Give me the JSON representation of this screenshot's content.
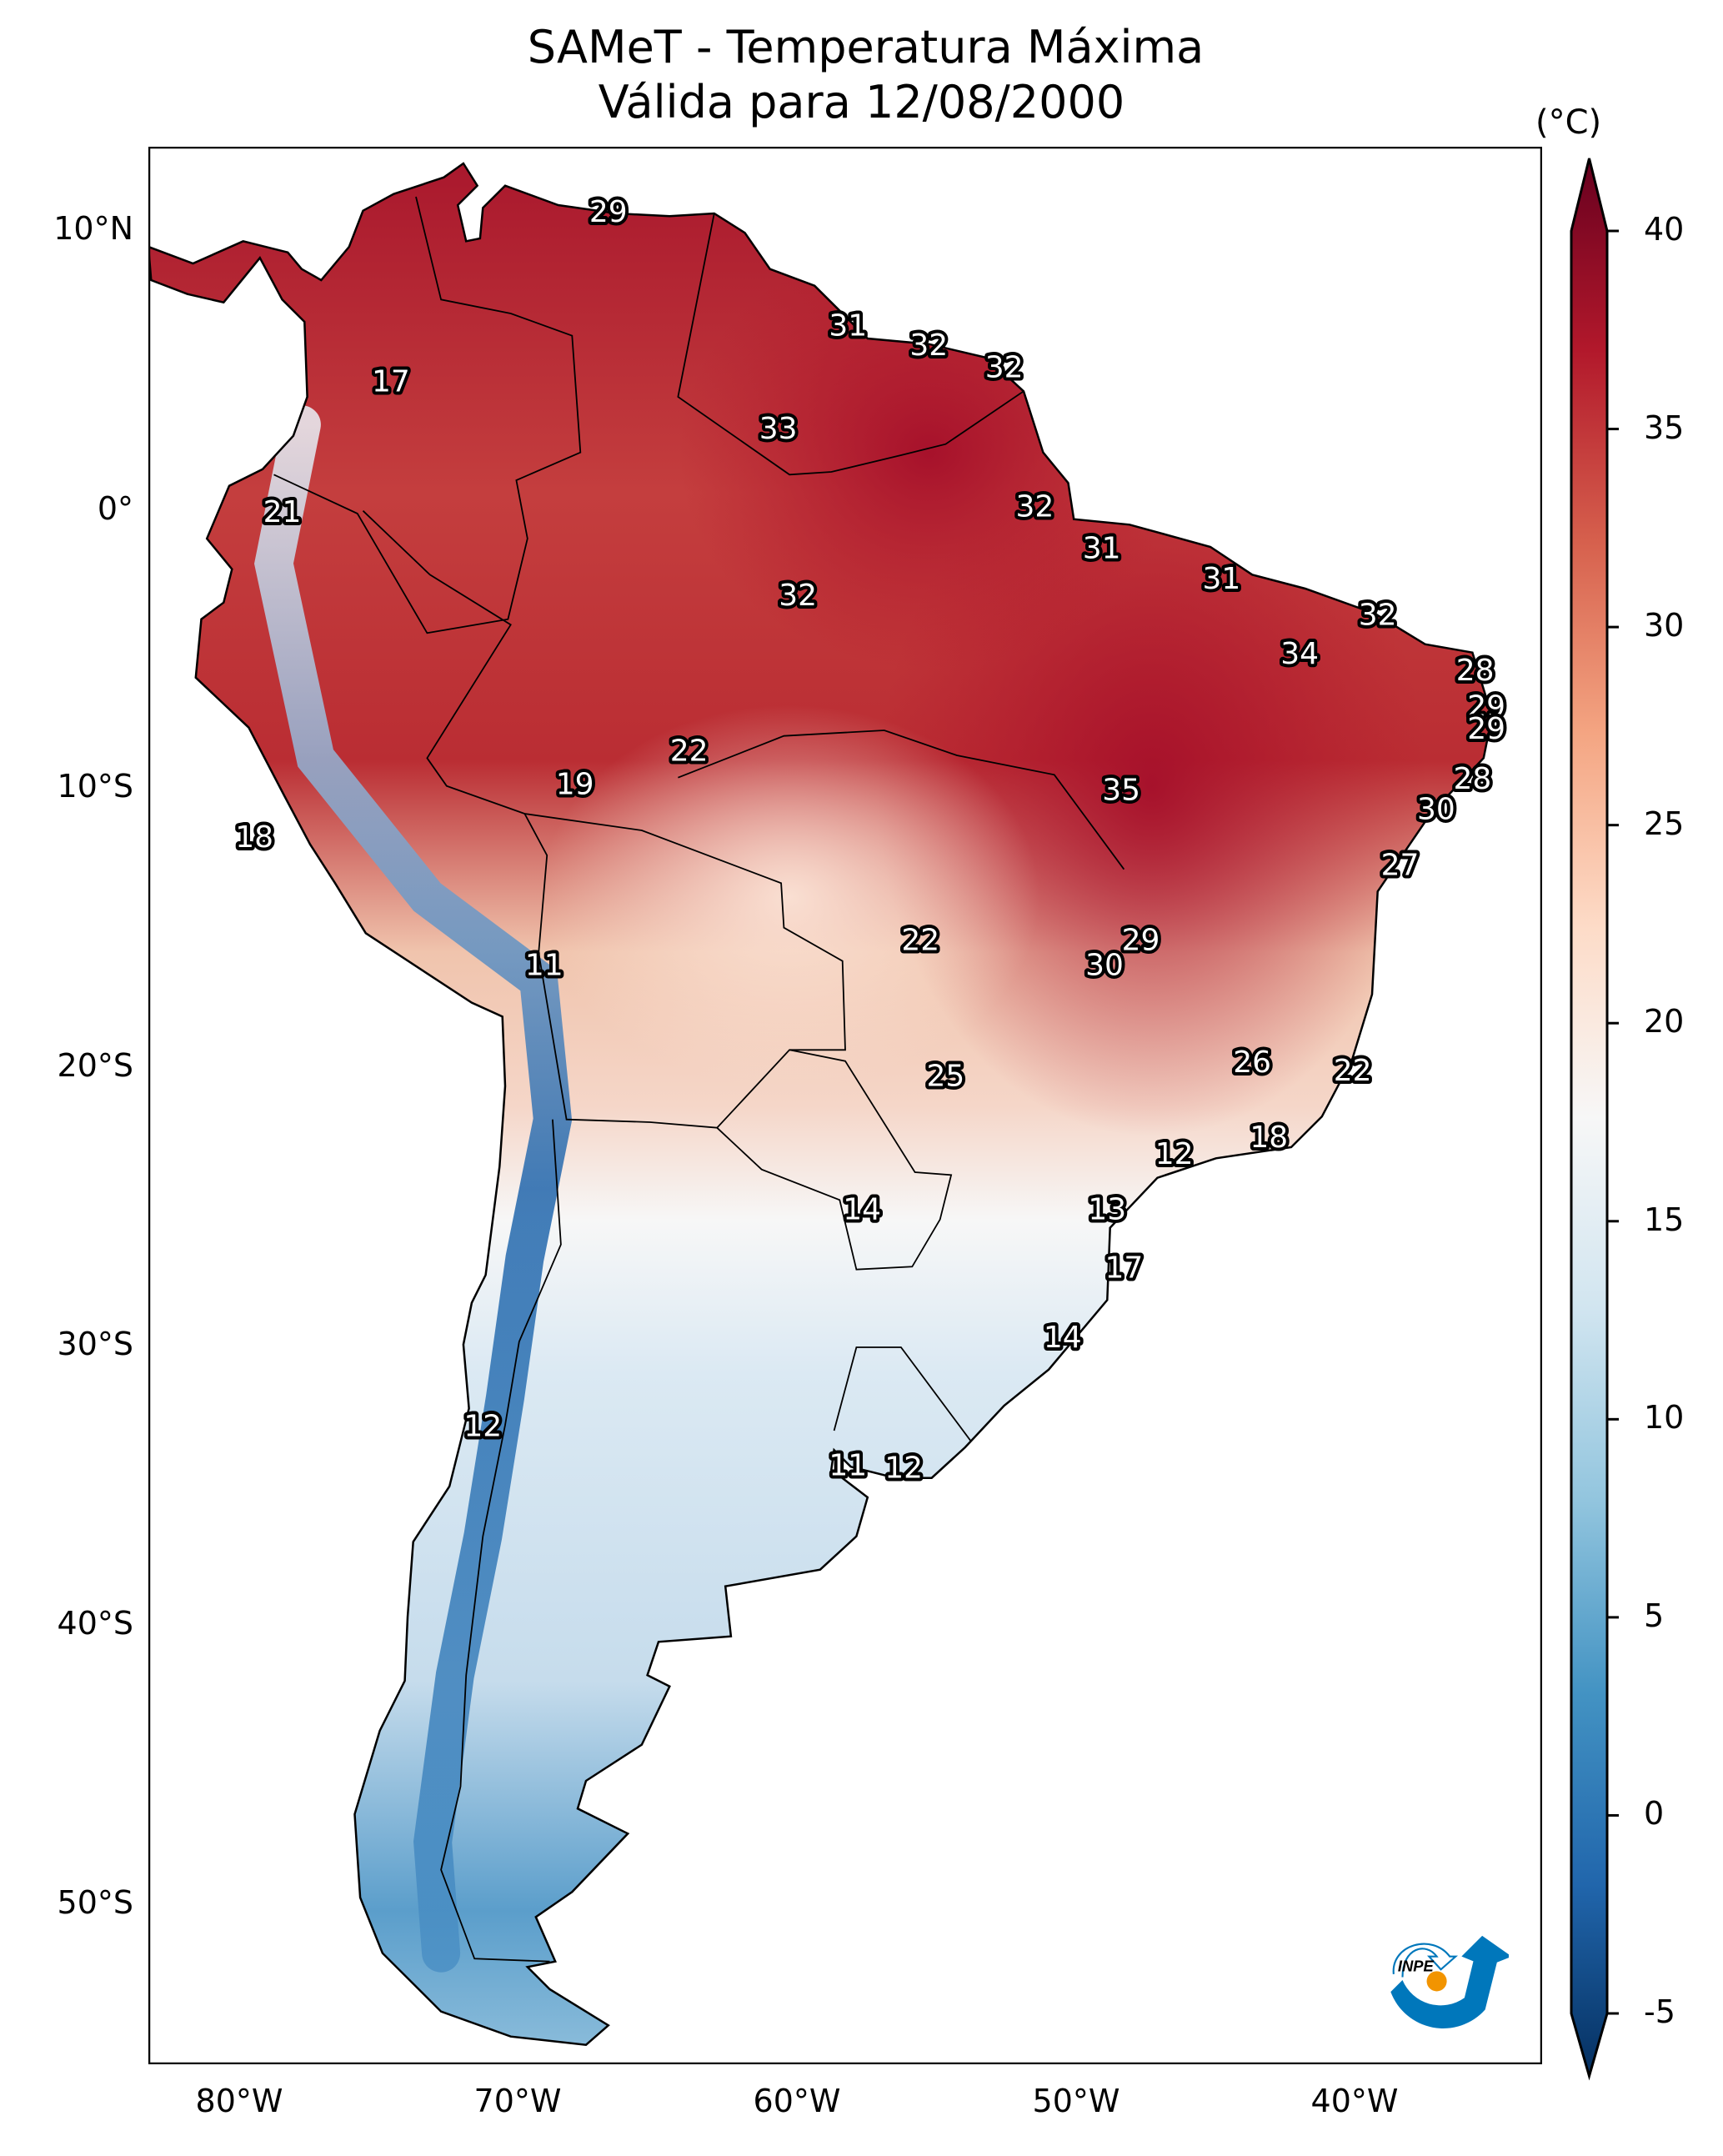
{
  "chart_data": {
    "type": "heatmap",
    "title": "SAMeT - Temperatura Máxima",
    "subtitle": "Válida para 12/08/2000",
    "xlabel": "",
    "ylabel": "",
    "x_ticks": [
      "80°W",
      "70°W",
      "60°W",
      "50°W",
      "40°W"
    ],
    "x_tick_values": [
      -80,
      -70,
      -60,
      -50,
      -40
    ],
    "y_ticks": [
      "10°N",
      "0°",
      "10°S",
      "20°S",
      "30°S",
      "40°S",
      "50°S"
    ],
    "y_tick_values": [
      10,
      0,
      -10,
      -20,
      -30,
      -40,
      -50
    ],
    "xlim": [
      -83,
      -33
    ],
    "ylim": [
      -56,
      13
    ],
    "colorbar": {
      "unit": "(°C)",
      "ticks": [
        "40",
        "35",
        "30",
        "25",
        "20",
        "15",
        "10",
        "5",
        "0",
        "-5"
      ],
      "tick_values": [
        40,
        35,
        30,
        25,
        20,
        15,
        10,
        5,
        0,
        -5
      ],
      "range": [
        -5,
        40
      ],
      "extend": "both",
      "colormap": "RdBu_r",
      "stops": [
        "#053061",
        "#2166ac",
        "#4393c3",
        "#92c5de",
        "#d1e5f0",
        "#f7f7f7",
        "#fddbc7",
        "#f4a582",
        "#d6604d",
        "#b2182b",
        "#67001f"
      ]
    },
    "point_labels": [
      {
        "lon": -66.5,
        "lat": 10.6,
        "value": 29
      },
      {
        "lon": -57.9,
        "lat": 6.5,
        "value": 31
      },
      {
        "lon": -55.0,
        "lat": 5.8,
        "value": 32
      },
      {
        "lon": -52.3,
        "lat": 5.0,
        "value": 32
      },
      {
        "lon": -74.3,
        "lat": 4.5,
        "value": 17
      },
      {
        "lon": -60.4,
        "lat": 2.8,
        "value": 33
      },
      {
        "lon": -51.2,
        "lat": 0.0,
        "value": 32
      },
      {
        "lon": -78.2,
        "lat": -0.2,
        "value": 21
      },
      {
        "lon": -48.8,
        "lat": -1.5,
        "value": 31
      },
      {
        "lon": -44.5,
        "lat": -2.6,
        "value": 31
      },
      {
        "lon": -59.7,
        "lat": -3.2,
        "value": 32
      },
      {
        "lon": -38.9,
        "lat": -3.9,
        "value": 32
      },
      {
        "lon": -41.7,
        "lat": -5.3,
        "value": 34
      },
      {
        "lon": -35.4,
        "lat": -5.9,
        "value": 28
      },
      {
        "lon": -35.0,
        "lat": -7.2,
        "value": 29
      },
      {
        "lon": -35.0,
        "lat": -8.0,
        "value": 29
      },
      {
        "lon": -63.6,
        "lat": -8.8,
        "value": 22
      },
      {
        "lon": -35.5,
        "lat": -9.8,
        "value": 28
      },
      {
        "lon": -67.7,
        "lat": -10.0,
        "value": 19
      },
      {
        "lon": -48.1,
        "lat": -10.2,
        "value": 35
      },
      {
        "lon": -36.8,
        "lat": -10.9,
        "value": 30
      },
      {
        "lon": -79.2,
        "lat": -11.9,
        "value": 18
      },
      {
        "lon": -38.1,
        "lat": -12.9,
        "value": 27
      },
      {
        "lon": -55.3,
        "lat": -15.6,
        "value": 22
      },
      {
        "lon": -47.4,
        "lat": -15.6,
        "value": 29
      },
      {
        "lon": -68.8,
        "lat": -16.5,
        "value": 11
      },
      {
        "lon": -48.7,
        "lat": -16.5,
        "value": 30
      },
      {
        "lon": -43.4,
        "lat": -20.0,
        "value": 26
      },
      {
        "lon": -39.8,
        "lat": -20.3,
        "value": 22
      },
      {
        "lon": -54.4,
        "lat": -20.5,
        "value": 25
      },
      {
        "lon": -42.8,
        "lat": -22.7,
        "value": 18
      },
      {
        "lon": -46.2,
        "lat": -23.3,
        "value": 12
      },
      {
        "lon": -57.4,
        "lat": -25.3,
        "value": 14
      },
      {
        "lon": -48.6,
        "lat": -25.3,
        "value": 13
      },
      {
        "lon": -48.0,
        "lat": -27.4,
        "value": 17
      },
      {
        "lon": -50.2,
        "lat": -29.9,
        "value": 14
      },
      {
        "lon": -71.0,
        "lat": -33.1,
        "value": 12
      },
      {
        "lon": -57.9,
        "lat": -34.5,
        "value": 11
      },
      {
        "lon": -55.9,
        "lat": -34.6,
        "value": 12
      }
    ]
  },
  "logo": {
    "text": "INPE",
    "colors": {
      "blue": "#0077bb",
      "orange": "#f29400"
    }
  }
}
